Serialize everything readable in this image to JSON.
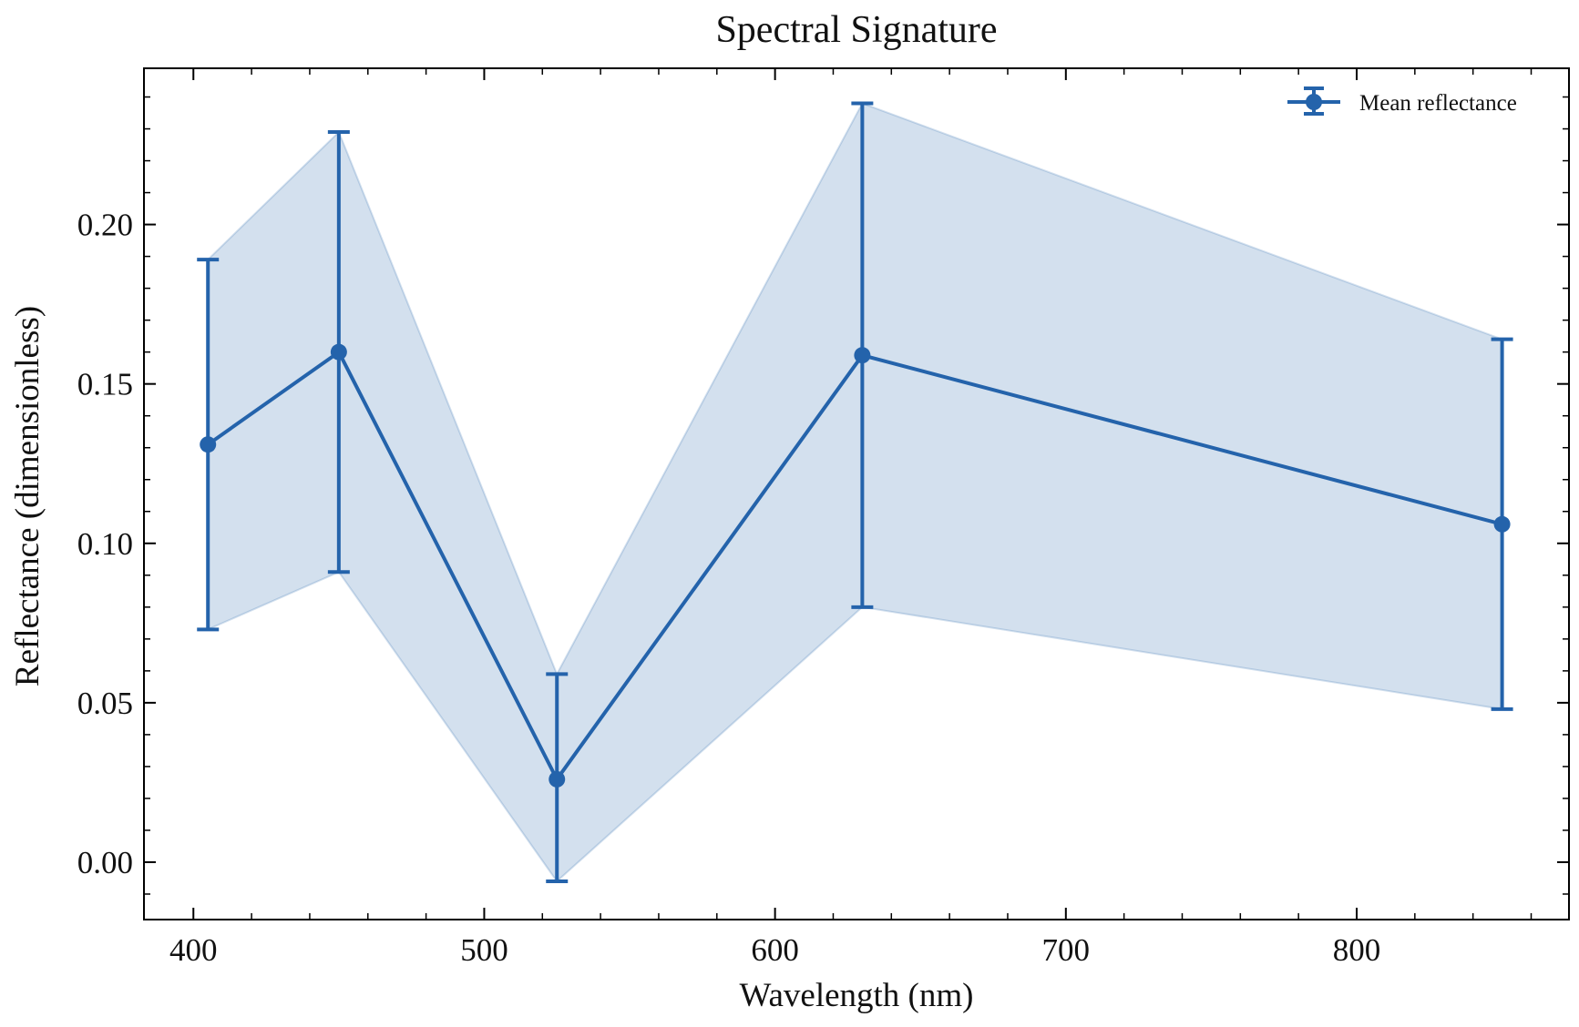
{
  "chart_data": {
    "type": "line",
    "title": "Spectral Signature",
    "xlabel": "Wavelength (nm)",
    "ylabel": "Reflectance (dimensionless)",
    "xlim": [
      383,
      873
    ],
    "ylim": [
      -0.018,
      0.249
    ],
    "x_ticks": [
      400,
      500,
      600,
      700,
      800
    ],
    "x_tick_labels": [
      "400",
      "500",
      "600",
      "700",
      "800"
    ],
    "y_ticks": [
      0.0,
      0.05,
      0.1,
      0.15,
      0.2
    ],
    "y_tick_labels": [
      "0.00",
      "0.05",
      "0.10",
      "0.15",
      "0.20"
    ],
    "grid": false,
    "legend_position": "top-right",
    "series": [
      {
        "name": "Mean reflectance",
        "color": "#2463ab",
        "band_color": "#2463ab",
        "x": [
          405,
          450,
          525,
          630,
          850
        ],
        "y": [
          0.131,
          0.16,
          0.026,
          0.159,
          0.106
        ],
        "yerr_lower": [
          0.073,
          0.091,
          -0.006,
          0.08,
          0.048
        ],
        "yerr_upper": [
          0.189,
          0.229,
          0.059,
          0.238,
          0.164
        ]
      }
    ]
  }
}
